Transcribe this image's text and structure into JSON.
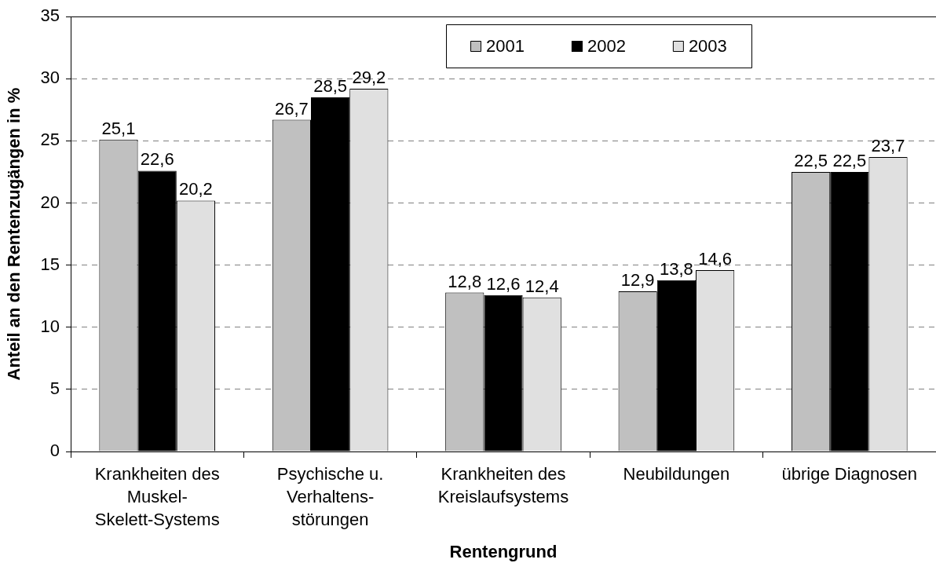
{
  "chart_data": {
    "type": "bar",
    "xlabel": "Rentengrund",
    "ylabel": "Anteil an den Rentenzugängen in %",
    "categories": [
      "Krankheiten des Muskel-Skelett-Systems",
      "Psychische u. Verhaltens-störungen",
      "Krankheiten des Kreislaufsystems",
      "Neubildungen",
      "übrige Diagnosen"
    ],
    "series": [
      {
        "name": "2001",
        "color": "#c0c0c0",
        "values": [
          25.1,
          26.7,
          12.8,
          12.9,
          22.5
        ],
        "value_labels": [
          "25,1",
          "26,7",
          "12,8",
          "12,9",
          "22,5"
        ]
      },
      {
        "name": "2002",
        "color": "#000000",
        "values": [
          22.6,
          28.5,
          12.6,
          13.8,
          22.5
        ],
        "value_labels": [
          "22,6",
          "28,5",
          "12,6",
          "13,8",
          "22,5"
        ]
      },
      {
        "name": "2003",
        "color": "#e0e0e0",
        "values": [
          20.2,
          29.2,
          12.4,
          14.6,
          23.7
        ],
        "value_labels": [
          "20,2",
          "29,2",
          "12,4",
          "14,6",
          "23,7"
        ]
      }
    ],
    "ylim": [
      0,
      35
    ],
    "yticks": [
      0,
      5,
      10,
      15,
      20,
      25,
      30,
      35
    ],
    "grid": "y",
    "legend": "top"
  }
}
